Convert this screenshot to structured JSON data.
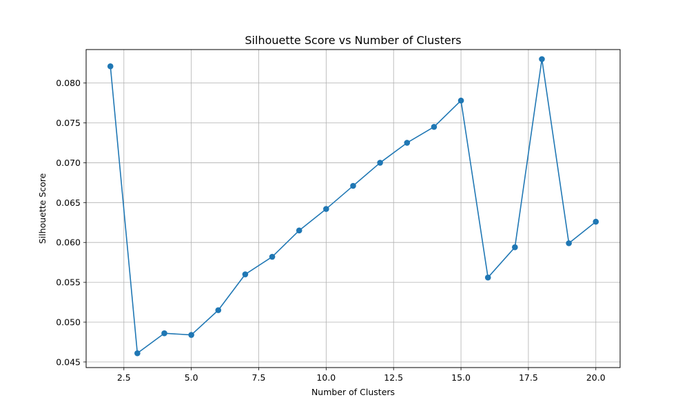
{
  "chart_data": {
    "type": "line",
    "title": "Silhouette Score vs Number of Clusters",
    "xlabel": "Number of Clusters",
    "ylabel": "Silhouette Score",
    "xlim": [
      1.1,
      20.9
    ],
    "ylim": [
      0.0443,
      0.0842
    ],
    "xticks": [
      2.5,
      5.0,
      7.5,
      10.0,
      12.5,
      15.0,
      17.5,
      20.0
    ],
    "xtick_labels": [
      "2.5",
      "5.0",
      "7.5",
      "10.0",
      "12.5",
      "15.0",
      "17.5",
      "20.0"
    ],
    "yticks": [
      0.045,
      0.05,
      0.055,
      0.06,
      0.065,
      0.07,
      0.075,
      0.08
    ],
    "ytick_labels": [
      "0.045",
      "0.050",
      "0.055",
      "0.060",
      "0.065",
      "0.070",
      "0.075",
      "0.080"
    ],
    "grid": true,
    "series": [
      {
        "color": "#1f77b4",
        "marker": "circle",
        "x": [
          2,
          3,
          4,
          5,
          6,
          7,
          8,
          9,
          10,
          11,
          12,
          13,
          14,
          15,
          16,
          17,
          18,
          19,
          20
        ],
        "y": [
          0.0821,
          0.0461,
          0.0486,
          0.0484,
          0.0515,
          0.056,
          0.0582,
          0.0615,
          0.0642,
          0.0671,
          0.07,
          0.0725,
          0.0745,
          0.0778,
          0.0556,
          0.0594,
          0.083,
          0.0599,
          0.0626
        ]
      }
    ]
  }
}
